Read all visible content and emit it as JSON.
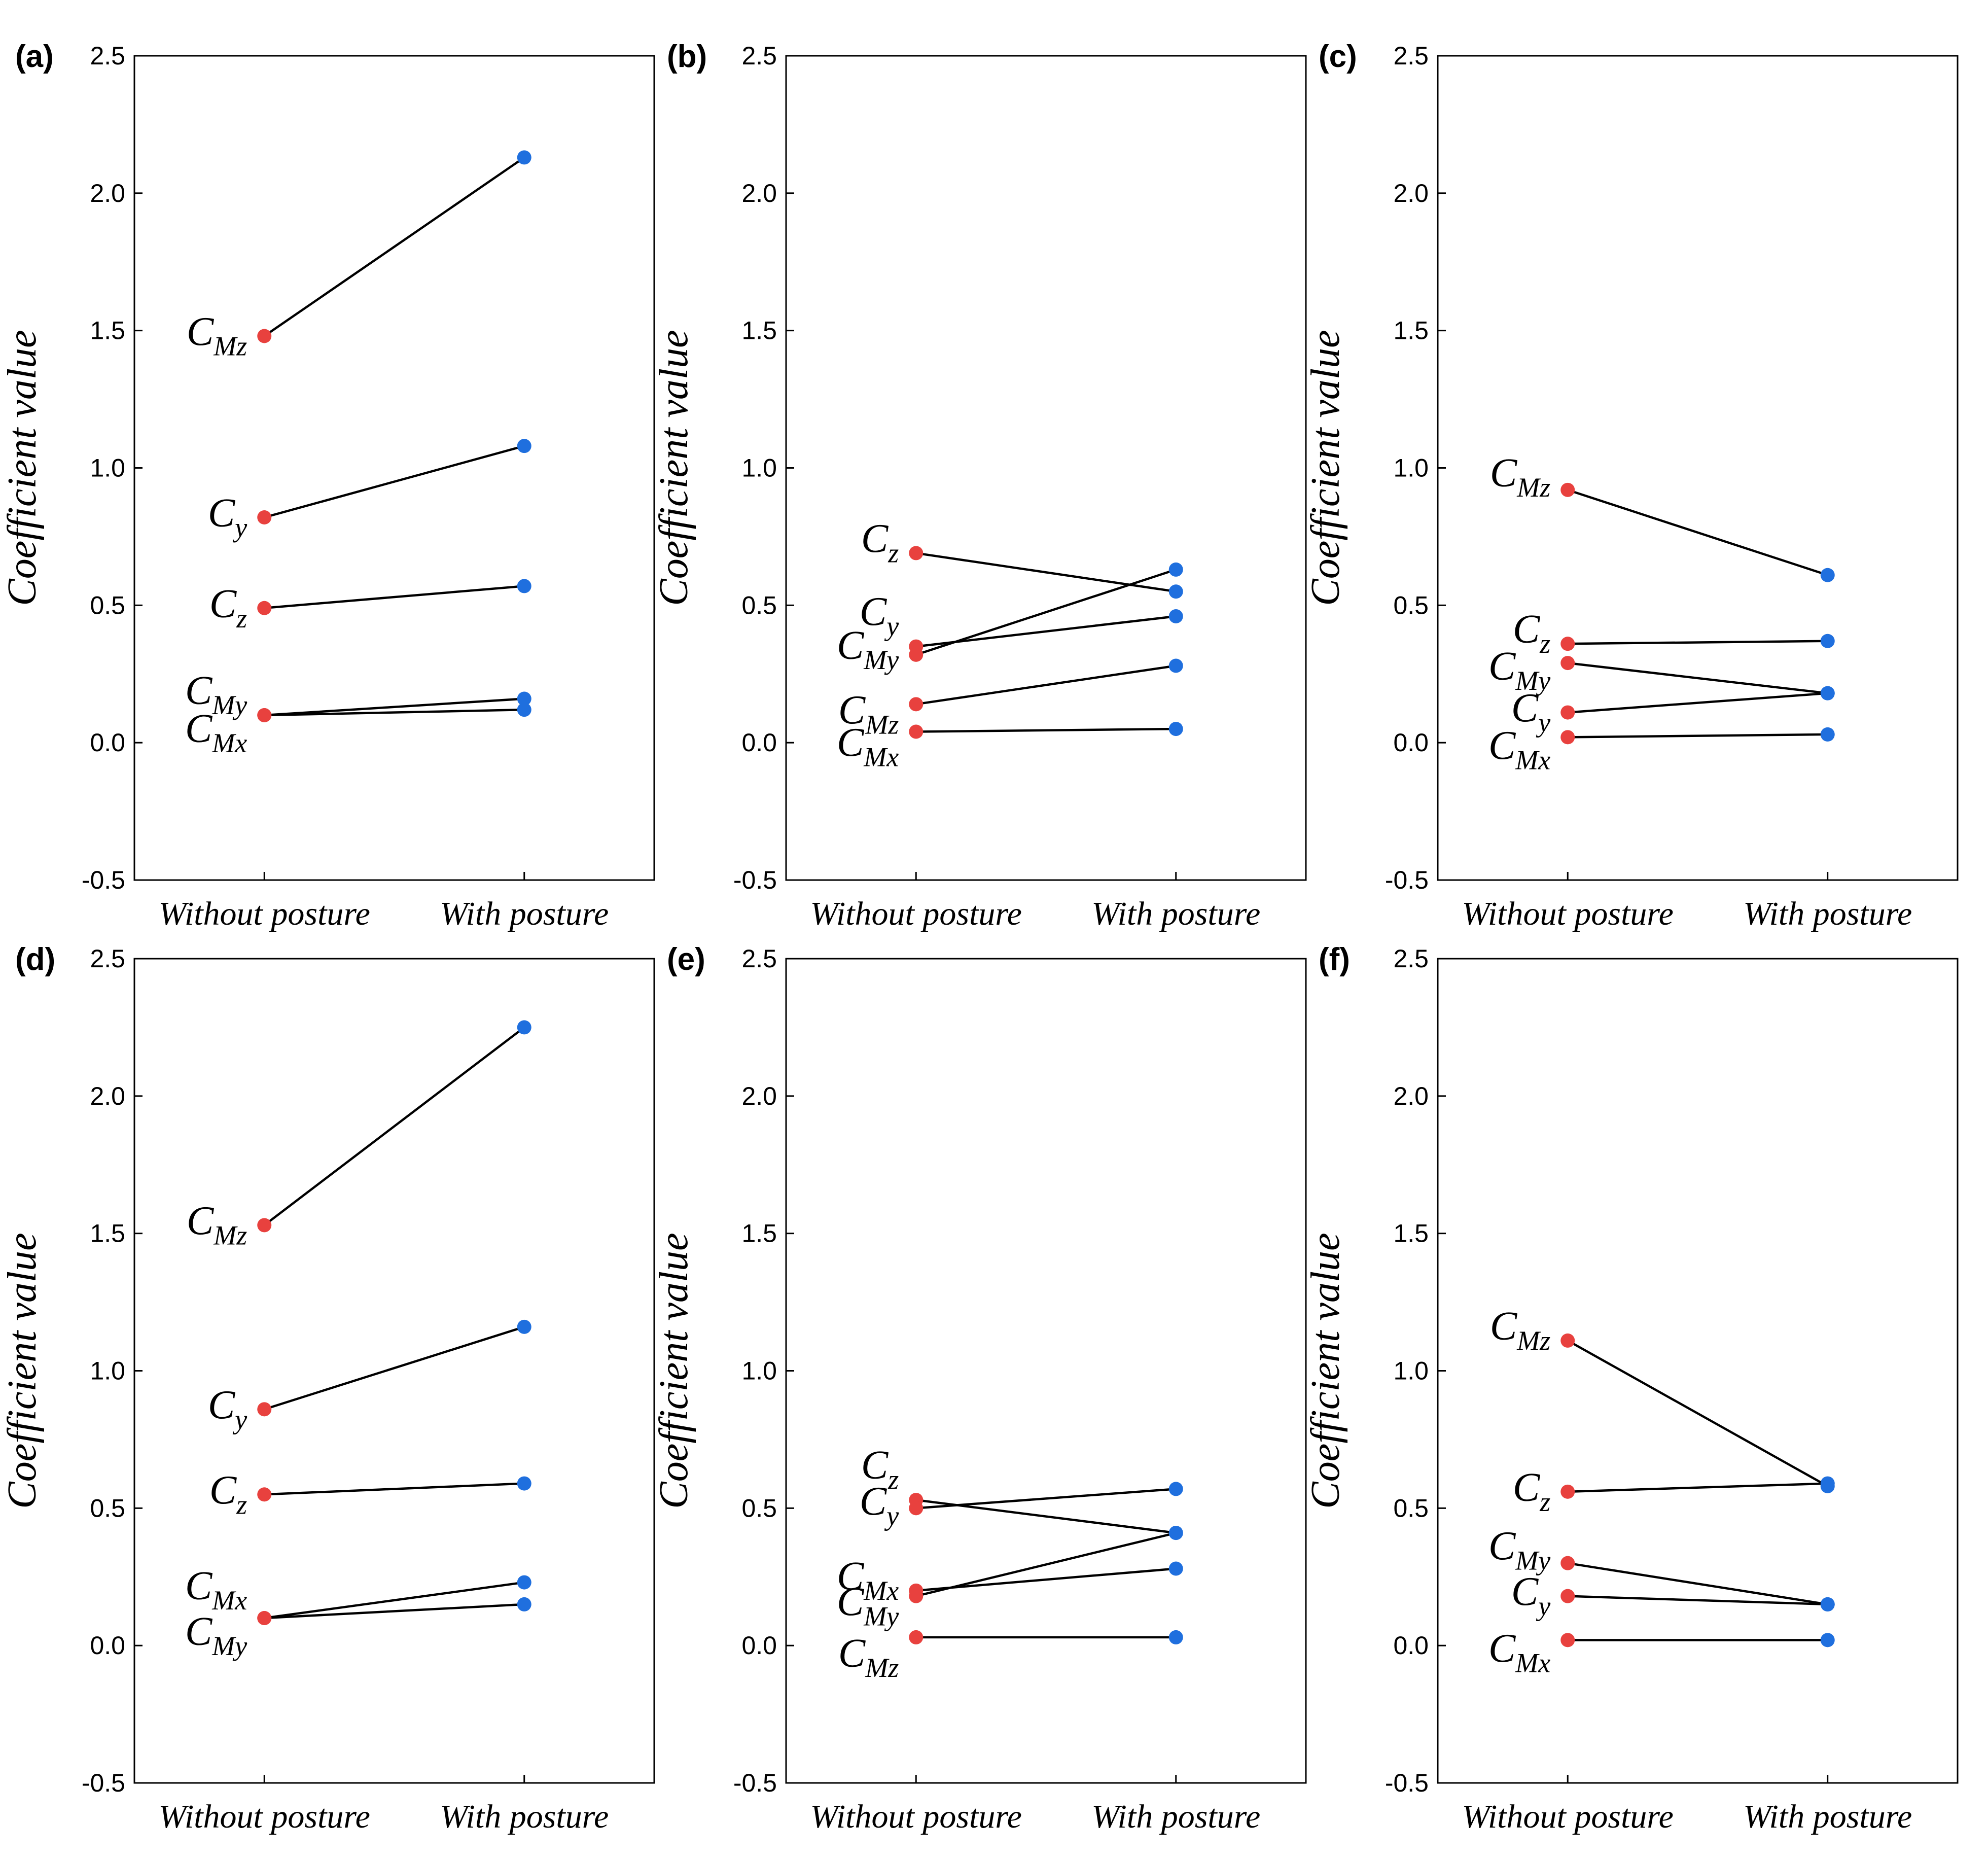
{
  "chart_data": [
    {
      "panel": "(a)",
      "type": "line",
      "categories": [
        "Without posture",
        "With posture"
      ],
      "ylabel": "Coefficient value",
      "ylim": [
        -0.5,
        2.5
      ],
      "yticks": [
        "-0.5",
        "0.0",
        "0.5",
        "1.0",
        "1.5",
        "2.0",
        "2.5"
      ],
      "grid": false,
      "colors": {
        "without": "#e8413e",
        "with": "#1f6fde",
        "line": "#000000"
      },
      "series": [
        {
          "name": "C_Mz",
          "main": "C",
          "sub": "Mz",
          "values": [
            1.48,
            2.13
          ]
        },
        {
          "name": "C_y",
          "main": "C",
          "sub": "y",
          "values": [
            0.82,
            1.08
          ]
        },
        {
          "name": "C_z",
          "main": "C",
          "sub": "z",
          "values": [
            0.49,
            0.57
          ]
        },
        {
          "name": "C_My",
          "main": "C",
          "sub": "My",
          "values": [
            0.1,
            0.16
          ]
        },
        {
          "name": "C_Mx",
          "main": "C",
          "sub": "Mx",
          "values": [
            0.1,
            0.12
          ]
        }
      ]
    },
    {
      "panel": "(b)",
      "type": "line",
      "categories": [
        "Without posture",
        "With posture"
      ],
      "ylabel": "Coefficient value",
      "ylim": [
        -0.5,
        2.5
      ],
      "yticks": [
        "-0.5",
        "0.0",
        "0.5",
        "1.0",
        "1.5",
        "2.0",
        "2.5"
      ],
      "grid": false,
      "colors": {
        "without": "#e8413e",
        "with": "#1f6fde",
        "line": "#000000"
      },
      "series": [
        {
          "name": "C_z",
          "main": "C",
          "sub": "z",
          "values": [
            0.69,
            0.55
          ]
        },
        {
          "name": "C_y",
          "main": "C",
          "sub": "y",
          "values": [
            0.35,
            0.46
          ]
        },
        {
          "name": "C_My",
          "main": "C",
          "sub": "My",
          "values": [
            0.32,
            0.63
          ]
        },
        {
          "name": "C_Mz",
          "main": "C",
          "sub": "Mz",
          "values": [
            0.14,
            0.28
          ]
        },
        {
          "name": "C_Mx",
          "main": "C",
          "sub": "Mx",
          "values": [
            0.04,
            0.05
          ]
        }
      ]
    },
    {
      "panel": "(c)",
      "type": "line",
      "categories": [
        "Without posture",
        "With posture"
      ],
      "ylabel": "Coefficient value",
      "ylim": [
        -0.5,
        2.5
      ],
      "yticks": [
        "-0.5",
        "0.0",
        "0.5",
        "1.0",
        "1.5",
        "2.0",
        "2.5"
      ],
      "grid": false,
      "colors": {
        "without": "#e8413e",
        "with": "#1f6fde",
        "line": "#000000"
      },
      "series": [
        {
          "name": "C_Mz",
          "main": "C",
          "sub": "Mz",
          "values": [
            0.92,
            0.61
          ]
        },
        {
          "name": "C_z",
          "main": "C",
          "sub": "z",
          "values": [
            0.36,
            0.37
          ]
        },
        {
          "name": "C_My",
          "main": "C",
          "sub": "My",
          "values": [
            0.29,
            0.18
          ]
        },
        {
          "name": "C_y",
          "main": "C",
          "sub": "y",
          "values": [
            0.11,
            0.18
          ]
        },
        {
          "name": "C_Mx",
          "main": "C",
          "sub": "Mx",
          "values": [
            0.02,
            0.03
          ]
        }
      ]
    },
    {
      "panel": "(d)",
      "type": "line",
      "categories": [
        "Without posture",
        "With posture"
      ],
      "ylabel": "Coefficient value",
      "ylim": [
        -0.5,
        2.5
      ],
      "yticks": [
        "-0.5",
        "0.0",
        "0.5",
        "1.0",
        "1.5",
        "2.0",
        "2.5"
      ],
      "grid": false,
      "colors": {
        "without": "#e8413e",
        "with": "#1f6fde",
        "line": "#000000"
      },
      "series": [
        {
          "name": "C_Mz",
          "main": "C",
          "sub": "Mz",
          "values": [
            1.53,
            2.25
          ]
        },
        {
          "name": "C_y",
          "main": "C",
          "sub": "y",
          "values": [
            0.86,
            1.16
          ]
        },
        {
          "name": "C_z",
          "main": "C",
          "sub": "z",
          "values": [
            0.55,
            0.59
          ]
        },
        {
          "name": "C_Mx",
          "main": "C",
          "sub": "Mx",
          "values": [
            0.1,
            0.23
          ]
        },
        {
          "name": "C_My",
          "main": "C",
          "sub": "My",
          "values": [
            0.1,
            0.15
          ]
        }
      ]
    },
    {
      "panel": "(e)",
      "type": "line",
      "categories": [
        "Without posture",
        "With posture"
      ],
      "ylabel": "Coefficient value",
      "ylim": [
        -0.5,
        2.5
      ],
      "yticks": [
        "-0.5",
        "0.0",
        "0.5",
        "1.0",
        "1.5",
        "2.0",
        "2.5"
      ],
      "grid": false,
      "colors": {
        "without": "#e8413e",
        "with": "#1f6fde",
        "line": "#000000"
      },
      "series": [
        {
          "name": "C_z",
          "main": "C",
          "sub": "z",
          "values": [
            0.53,
            0.41
          ]
        },
        {
          "name": "C_y",
          "main": "C",
          "sub": "y",
          "values": [
            0.5,
            0.57
          ]
        },
        {
          "name": "C_Mx",
          "main": "C",
          "sub": "Mx",
          "values": [
            0.2,
            0.28
          ]
        },
        {
          "name": "C_My",
          "main": "C",
          "sub": "My",
          "values": [
            0.18,
            0.41
          ]
        },
        {
          "name": "C_Mz",
          "main": "C",
          "sub": "Mz",
          "values": [
            0.03,
            0.03
          ]
        }
      ]
    },
    {
      "panel": "(f)",
      "type": "line",
      "categories": [
        "Without posture",
        "With posture"
      ],
      "ylabel": "Coefficient value",
      "ylim": [
        -0.5,
        2.5
      ],
      "yticks": [
        "-0.5",
        "0.0",
        "0.5",
        "1.0",
        "1.5",
        "2.0",
        "2.5"
      ],
      "grid": false,
      "colors": {
        "without": "#e8413e",
        "with": "#1f6fde",
        "line": "#000000"
      },
      "series": [
        {
          "name": "C_Mz",
          "main": "C",
          "sub": "Mz",
          "values": [
            1.11,
            0.58
          ]
        },
        {
          "name": "C_z",
          "main": "C",
          "sub": "z",
          "values": [
            0.56,
            0.59
          ]
        },
        {
          "name": "C_My",
          "main": "C",
          "sub": "My",
          "values": [
            0.3,
            0.15
          ]
        },
        {
          "name": "C_y",
          "main": "C",
          "sub": "y",
          "values": [
            0.18,
            0.15
          ]
        },
        {
          "name": "C_Mx",
          "main": "C",
          "sub": "Mx",
          "values": [
            0.02,
            0.02
          ]
        }
      ]
    }
  ]
}
